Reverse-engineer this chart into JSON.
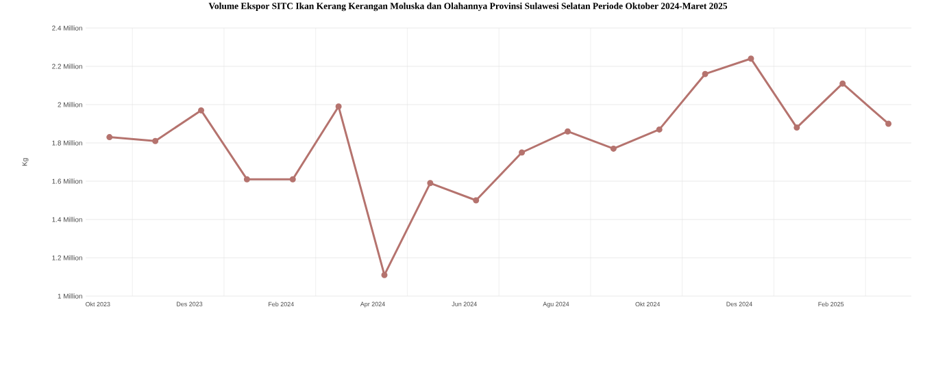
{
  "chart_data": {
    "type": "line",
    "title": "Volume Ekspor SITC Ikan Kerang Kerangan Moluska dan Olahannya Provinsi Sulawesi Selatan Periode Oktober 2024-Maret 2025",
    "ylabel": "Kg",
    "categories": [
      "Okt 2023",
      null,
      "Des 2023",
      null,
      "Feb 2024",
      null,
      "Apr 2024",
      null,
      "Jun 2024",
      null,
      "Agu 2024",
      null,
      "Okt 2024",
      null,
      "Des 2024",
      null,
      "Feb 2025",
      null
    ],
    "series": [
      {
        "color": "#b5736e",
        "values": [
          1.83,
          1.81,
          1.97,
          1.61,
          1.61,
          1.99,
          1.11,
          1.59,
          1.5,
          1.75,
          1.86,
          1.77,
          1.87,
          2.16,
          2.24,
          1.88,
          2.11,
          1.9
        ]
      }
    ],
    "ylim": [
      1,
      2.4
    ],
    "yticks": [
      {
        "value": 1,
        "label": "1 Million"
      },
      {
        "value": 1.2,
        "label": "1.2 Million"
      },
      {
        "value": 1.4,
        "label": "1.4 Million"
      },
      {
        "value": 1.6,
        "label": "1.6 Million"
      },
      {
        "value": 1.8,
        "label": "1.8 Million"
      },
      {
        "value": 2,
        "label": "2 Million"
      },
      {
        "value": 2.2,
        "label": "2.2 Million"
      },
      {
        "value": 2.4,
        "label": "2.4 Million"
      }
    ],
    "grid": true,
    "marker": "circle"
  }
}
